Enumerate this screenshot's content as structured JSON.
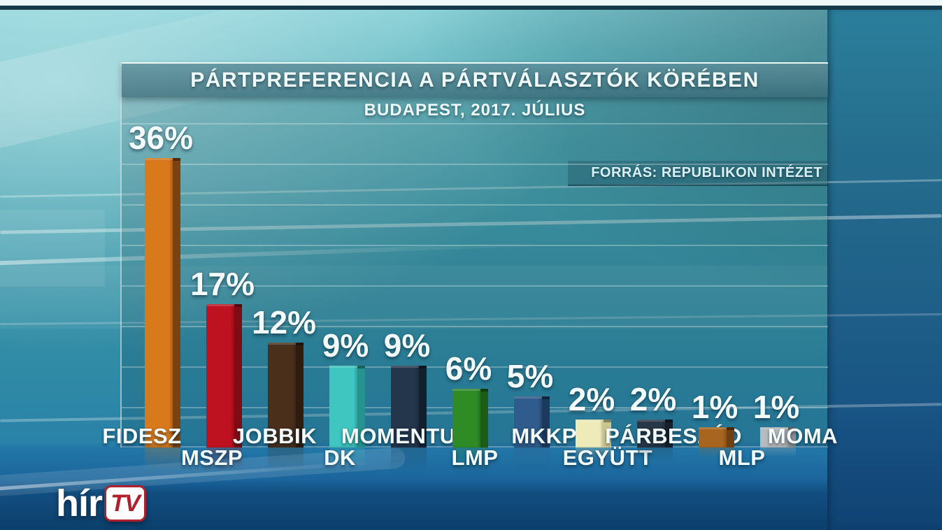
{
  "header": {
    "title": "PÁRTPREFERENCIA A PÁRTVÁLASZTÓK KÖRÉBEN",
    "subtitle": "BUDAPEST, 2017. JÚLIUS",
    "source": "FORRÁS: REPUBLIKON INTÉZET"
  },
  "chart_data": {
    "type": "bar",
    "title": "PÁRTPREFERENCIA A PÁRTVÁLASZTÓK KÖRÉBEN",
    "subtitle": "BUDAPEST, 2017. JÚLIUS",
    "source": "FORRÁS: REPUBLIKON INTÉZET",
    "categories": [
      "FIDESZ",
      "MSZP",
      "JOBBIK",
      "DK",
      "MOMENTUM",
      "LMP",
      "MKKP",
      "EGYÜTT",
      "PÁRBESZÉD",
      "MLP",
      "MOMA"
    ],
    "values": [
      36,
      17,
      12,
      9,
      9,
      6,
      5,
      2,
      2,
      1,
      1
    ],
    "value_labels": [
      "36%",
      "17%",
      "12%",
      "9%",
      "9%",
      "6%",
      "5%",
      "2%",
      "2%",
      "1%",
      "1%"
    ],
    "bar_colors": [
      "#d8791c",
      "#be1220",
      "#4a2f1b",
      "#3fc6c0",
      "#24364c",
      "#2f8b26",
      "#2f5c8c",
      "#efebb8",
      "#273748",
      "#a8651f",
      "#b9bcbe"
    ],
    "bar_side_colors": [
      "#7a4210",
      "#7e0c15",
      "#2e1c0e",
      "#27938e",
      "#141f2e",
      "#1c5c18",
      "#1c3a5c",
      "#ccc68e",
      "#16202c",
      "#6e4012",
      "#8e9294"
    ],
    "xlabel": "",
    "ylabel": "",
    "unit": "%",
    "ylim": [
      0,
      40
    ],
    "grid": true,
    "legend_position": "none"
  },
  "branding": {
    "channel_name": "hír",
    "channel_badge": "TV",
    "badge_color": "#b0202c"
  }
}
